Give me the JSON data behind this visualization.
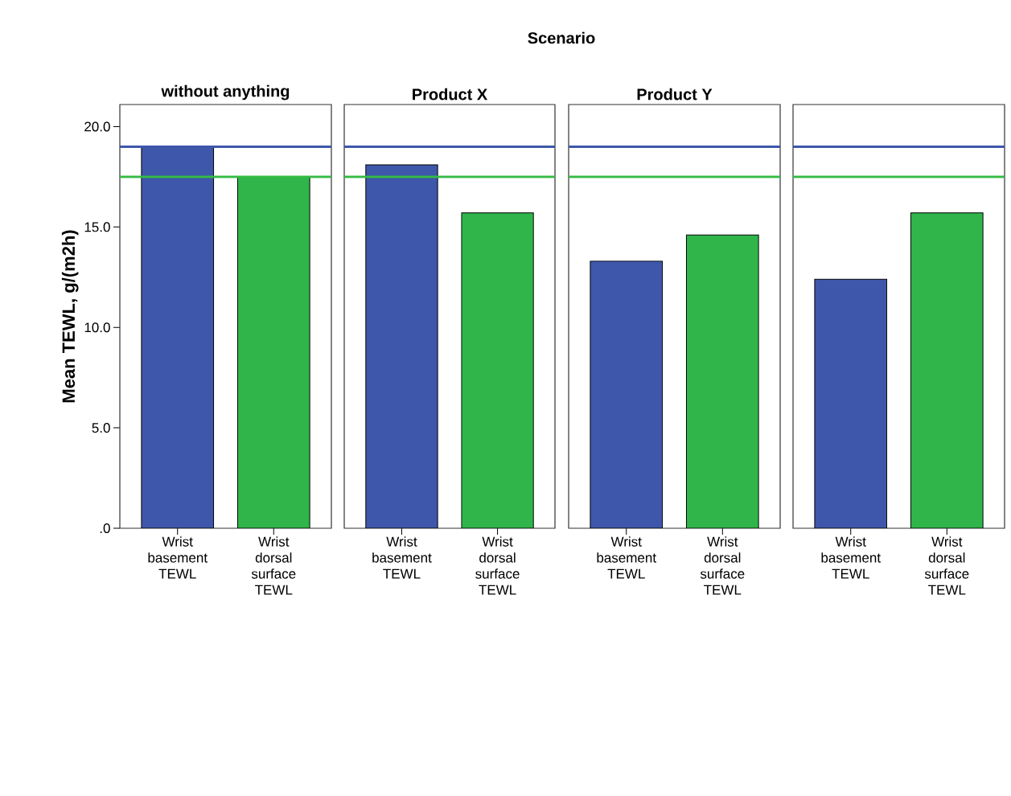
{
  "chart_data": [
    {
      "type": "bar",
      "title": "without anything",
      "ylabel": "Mean TEWL, g/(m2h)",
      "annotations": [
        "Scenario"
      ],
      "categories": [
        "Wrist basement TEWL",
        "Wrist dorsal surface TEWL"
      ],
      "values": [
        19.0,
        17.5
      ],
      "colors": [
        "#3e57aa",
        "#2fb54a"
      ],
      "ylim": [
        0,
        21.1
      ],
      "yticks": [
        {
          "value": 0,
          "label": ".0"
        },
        {
          "value": 5,
          "label": "5.0"
        },
        {
          "value": 10,
          "label": "10.0"
        },
        {
          "value": 15,
          "label": "15.0"
        },
        {
          "value": 20,
          "label": "20.0"
        }
      ],
      "ref_lines": [
        {
          "axis": "y",
          "value": 19.0,
          "color": "#3e57aa"
        },
        {
          "axis": "y",
          "value": 17.5,
          "color": "#33bb44"
        }
      ]
    },
    {
      "type": "bar",
      "title": "Product X",
      "categories": [
        "Wrist basement TEWL",
        "Wrist dorsal surface TEWL"
      ],
      "values": [
        18.1,
        15.7
      ],
      "colors": [
        "#3e57aa",
        "#2fb54a"
      ],
      "ylim": [
        0,
        21.1
      ],
      "tick_labels": "x",
      "ref_lines": [
        {
          "axis": "y",
          "value": 19.0,
          "color": "#3e57aa"
        },
        {
          "axis": "y",
          "value": 17.5,
          "color": "#33bb44"
        }
      ]
    },
    {
      "type": "bar",
      "title": "Product Y",
      "categories": [
        "Wrist basement TEWL",
        "Wrist dorsal surface TEWL"
      ],
      "values": [
        13.3,
        14.6
      ],
      "colors": [
        "#3e57aa",
        "#2fb54a"
      ],
      "ylim": [
        0,
        21.1
      ],
      "tick_labels": "x",
      "ref_lines": [
        {
          "axis": "y",
          "value": 19.0,
          "color": "#3e57aa"
        },
        {
          "axis": "y",
          "value": 17.5,
          "color": "#33bb44"
        }
      ]
    },
    {
      "type": "bar",
      "categories": [
        "Wrist basement TEWL",
        "Wrist dorsal surface TEWL"
      ],
      "values": [
        12.4,
        15.7
      ],
      "colors": [
        "#3e57aa",
        "#2fb54a"
      ],
      "ylim": [
        0,
        21.1
      ],
      "tick_labels": "x",
      "ref_lines": [
        {
          "axis": "y",
          "value": 19.0,
          "color": "#3e57aa"
        },
        {
          "axis": "y",
          "value": 17.5,
          "color": "#33bb44"
        }
      ]
    }
  ]
}
